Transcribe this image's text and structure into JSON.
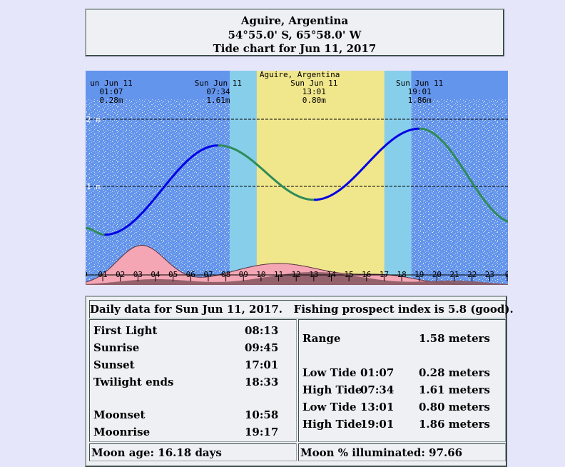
{
  "header": {
    "location": "Aguire, Argentina",
    "coords": "54°55.0' S, 65°58.0' W",
    "subtitle": "Tide chart for Jun 11, 2017"
  },
  "chart": {
    "station": "Aguire, Argentina",
    "tide_labels": [
      {
        "day": "un Jun 11",
        "time": "01:07",
        "height": "0.28m"
      },
      {
        "day": "Sun Jun 11",
        "time": "07:34",
        "height": "1.61m"
      },
      {
        "day": "Sun Jun 11",
        "time": "13:01",
        "height": "0.80m"
      },
      {
        "day": "Sun Jun 11",
        "time": "19:01",
        "height": "1.86m"
      }
    ],
    "y_labels": [
      "2 m",
      "1 m"
    ],
    "hour_labels": [
      "0",
      "01",
      "02",
      "03",
      "04",
      "05",
      "06",
      "07",
      "08",
      "09",
      "10",
      "11",
      "12",
      "13",
      "14",
      "15",
      "16",
      "17",
      "18",
      "19",
      "20",
      "21",
      "22",
      "23",
      "0"
    ],
    "colors": {
      "night": "#6495ed",
      "twilight": "#87ceeb",
      "day": "#f0e68c",
      "rising": "#0000e6",
      "falling": "#2e8b57",
      "moon": "#f4a6b4",
      "sun": "#8b5a64"
    }
  },
  "chart_data": {
    "type": "line",
    "title": "Aguire, Argentina",
    "xlabel": "",
    "ylabel": "",
    "xlim": [
      0,
      24
    ],
    "ylim": [
      0,
      2
    ],
    "x_unit": "hour",
    "y_unit": "m",
    "extremes": [
      {
        "x": 1.117,
        "y": 0.28,
        "kind": "Low"
      },
      {
        "x": 7.567,
        "y": 1.61,
        "kind": "High"
      },
      {
        "x": 13.017,
        "y": 0.8,
        "kind": "Low"
      },
      {
        "x": 19.017,
        "y": 1.86,
        "kind": "High"
      }
    ],
    "series": [
      {
        "values": [
          {
            "x": 0,
            "y": 0.38
          },
          {
            "x": 1.117,
            "y": 0.28
          },
          {
            "x": 2,
            "y": 0.36
          },
          {
            "x": 3,
            "y": 0.58
          },
          {
            "x": 4,
            "y": 0.86
          },
          {
            "x": 5,
            "y": 1.14
          },
          {
            "x": 6,
            "y": 1.38
          },
          {
            "x": 7,
            "y": 1.56
          },
          {
            "x": 7.567,
            "y": 1.61
          },
          {
            "x": 8,
            "y": 1.59
          },
          {
            "x": 9,
            "y": 1.45
          },
          {
            "x": 10,
            "y": 1.24
          },
          {
            "x": 11,
            "y": 1.02
          },
          {
            "x": 12,
            "y": 0.86
          },
          {
            "x": 13.017,
            "y": 0.8
          },
          {
            "x": 14,
            "y": 0.87
          },
          {
            "x": 15,
            "y": 1.06
          },
          {
            "x": 16,
            "y": 1.31
          },
          {
            "x": 17,
            "y": 1.56
          },
          {
            "x": 18,
            "y": 1.76
          },
          {
            "x": 19.017,
            "y": 1.86
          },
          {
            "x": 20,
            "y": 1.78
          },
          {
            "x": 21,
            "y": 1.55
          },
          {
            "x": 22,
            "y": 1.22
          },
          {
            "x": 23,
            "y": 0.88
          },
          {
            "x": 24,
            "y": 0.62
          }
        ]
      }
    ],
    "daylight": {
      "first_light": 8.217,
      "sunrise": 9.75,
      "sunset": 17.017,
      "twilight_ends": 18.55
    }
  },
  "daily": {
    "heading": "Daily data for Sun Jun 11, 2017.   Fishing prospect index is 5.8 (good).",
    "sun_moon": [
      {
        "label": "First Light",
        "value": "08:13"
      },
      {
        "label": "Sunrise",
        "value": "09:45"
      },
      {
        "label": "Sunset",
        "value": "17:01"
      },
      {
        "label": "Twilight ends",
        "value": "18:33"
      },
      {
        "label": "Moonset",
        "value": "10:58"
      },
      {
        "label": "Moonrise",
        "value": "19:17"
      }
    ],
    "range": {
      "label": "Range",
      "value": "1.58 meters"
    },
    "tides": [
      {
        "type": "Low Tide",
        "time": "01:07",
        "height": "0.28 meters"
      },
      {
        "type": "High Tide",
        "time": "07:34",
        "height": "1.61 meters"
      },
      {
        "type": "Low Tide",
        "time": "13:01",
        "height": "0.80 meters"
      },
      {
        "type": "High Tide",
        "time": "19:01",
        "height": "1.86 meters"
      }
    ],
    "moon_age": "Moon age: 16.18 days",
    "moon_illuminated": "Moon % illuminated: 97.66"
  }
}
